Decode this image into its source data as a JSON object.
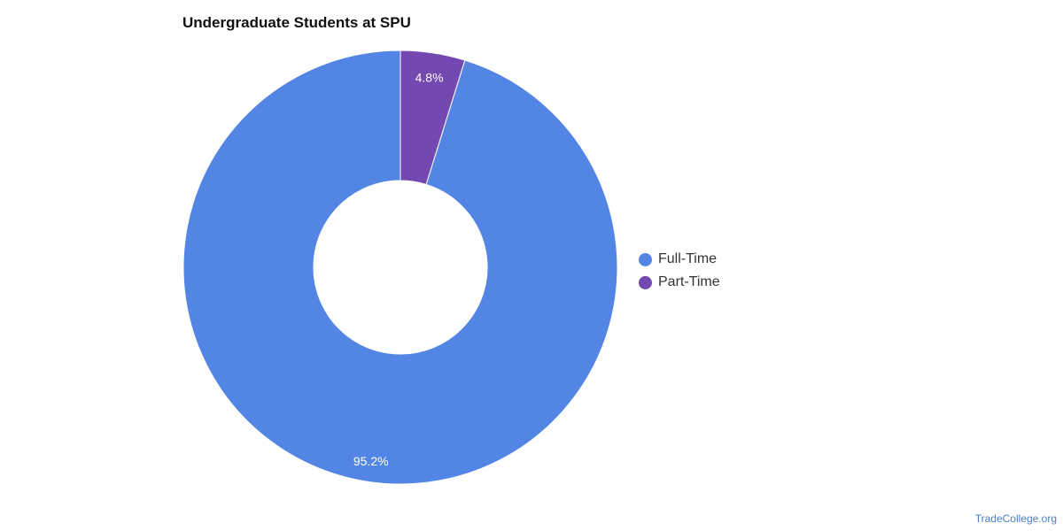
{
  "chart_data": {
    "type": "pie",
    "variant": "donut",
    "title": "Undergraduate Students at SPU",
    "slices": [
      {
        "label": "Full-Time",
        "value": 95.2,
        "value_label": "95.2%",
        "color": "#5386e4"
      },
      {
        "label": "Part-Time",
        "value": 4.8,
        "value_label": "4.8%",
        "color": "#7348b0"
      }
    ],
    "legend_placement": "right",
    "start_angle": "top",
    "direction": "counterclockwise"
  },
  "source": "TradeCollege.org"
}
